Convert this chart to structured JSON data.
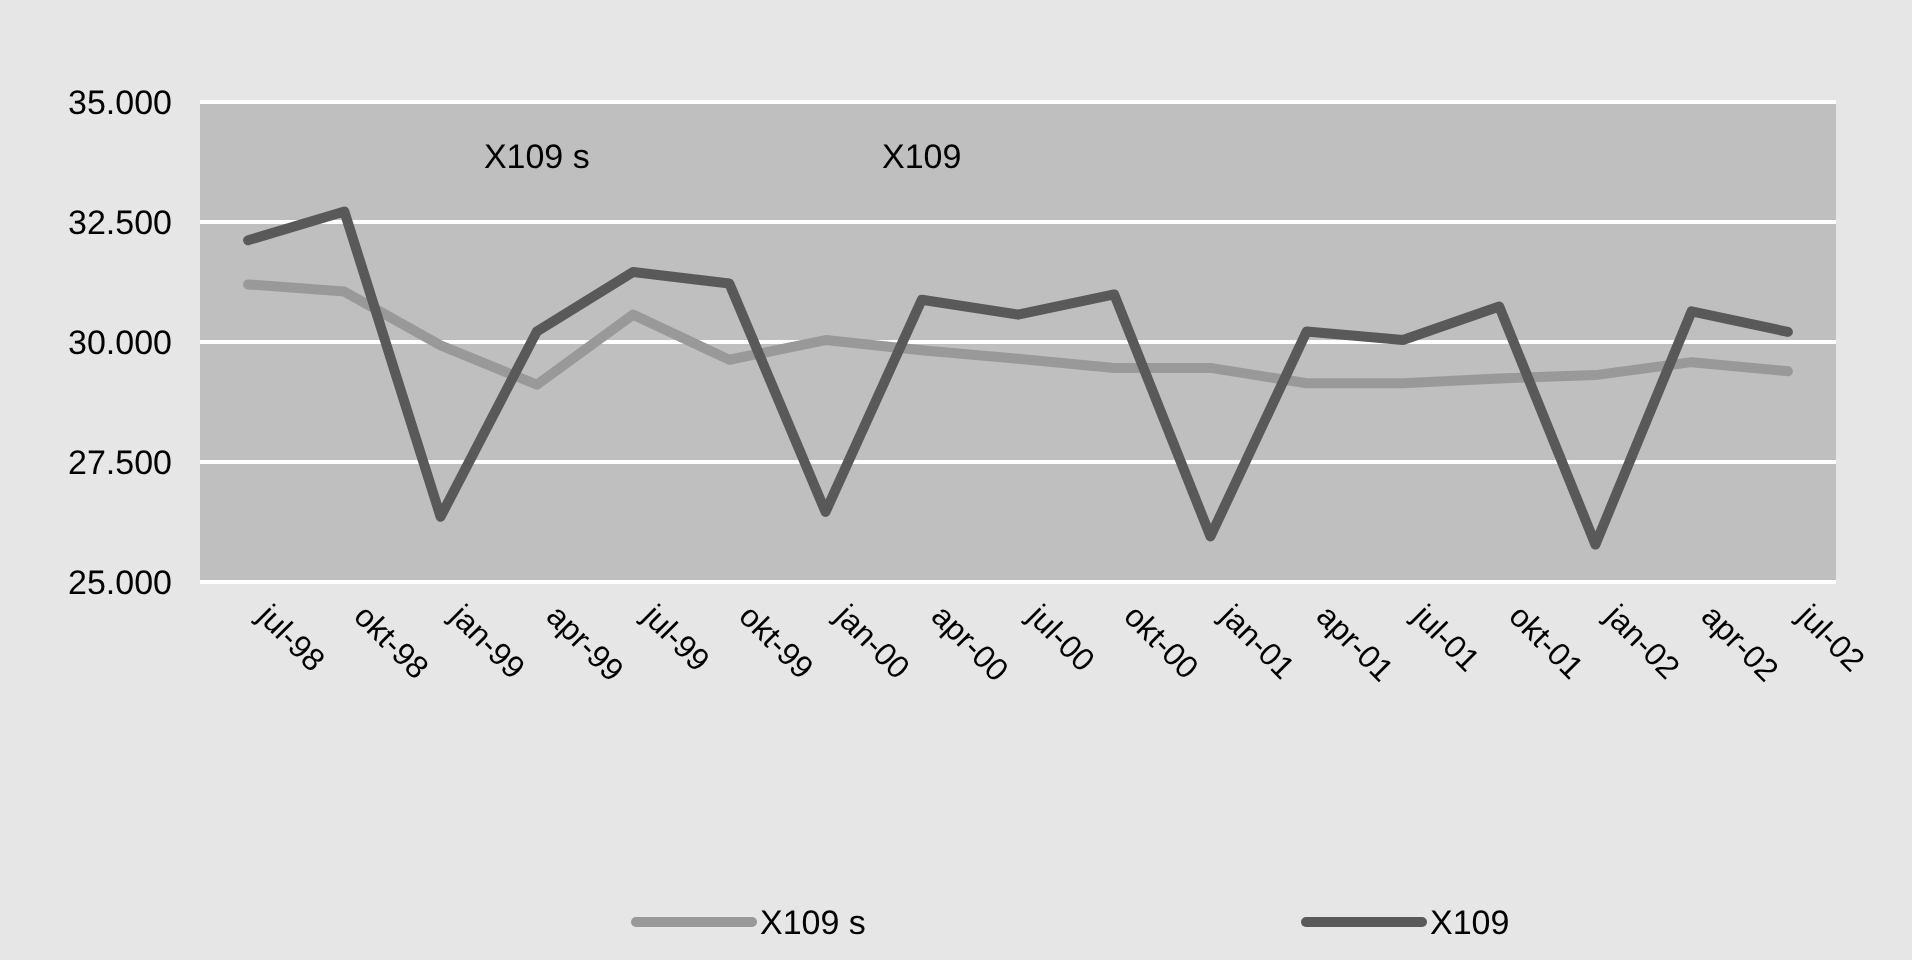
{
  "chart_data": {
    "type": "line",
    "categories": [
      "jul-98",
      "okt-98",
      "jan-99",
      "apr-99",
      "jul-99",
      "okt-99",
      "jan-00",
      "apr-00",
      "jul-00",
      "okt-00",
      "jan-01",
      "apr-01",
      "jul-01",
      "okt-01",
      "jan-02",
      "apr-02",
      "jul-02"
    ],
    "series": [
      {
        "name": "X109 s",
        "color": "#999999",
        "values": [
          31.2,
          31.05,
          29.93,
          29.11,
          30.57,
          29.63,
          30.04,
          29.83,
          29.65,
          29.46,
          29.46,
          29.14,
          29.14,
          29.24,
          29.31,
          29.58,
          29.39
        ]
      },
      {
        "name": "X109",
        "color": "#595959",
        "values": [
          32.12,
          32.72,
          26.36,
          30.22,
          31.46,
          31.22,
          26.46,
          30.88,
          30.57,
          30.99,
          25.95,
          30.22,
          30.04,
          30.74,
          25.78,
          30.64,
          30.21
        ]
      }
    ],
    "ylim": [
      25,
      35
    ],
    "yticks": [
      {
        "value": 25,
        "label": "25.000"
      },
      {
        "value": 27.5,
        "label": "27.500"
      },
      {
        "value": 30,
        "label": "30.000"
      },
      {
        "value": 32.5,
        "label": "32.500"
      },
      {
        "value": 35,
        "label": "35.000"
      }
    ],
    "grid": "y",
    "legend": "bottom",
    "marker": "none",
    "line_style": "solid",
    "annotations": [
      "X109 s",
      "X109"
    ]
  }
}
